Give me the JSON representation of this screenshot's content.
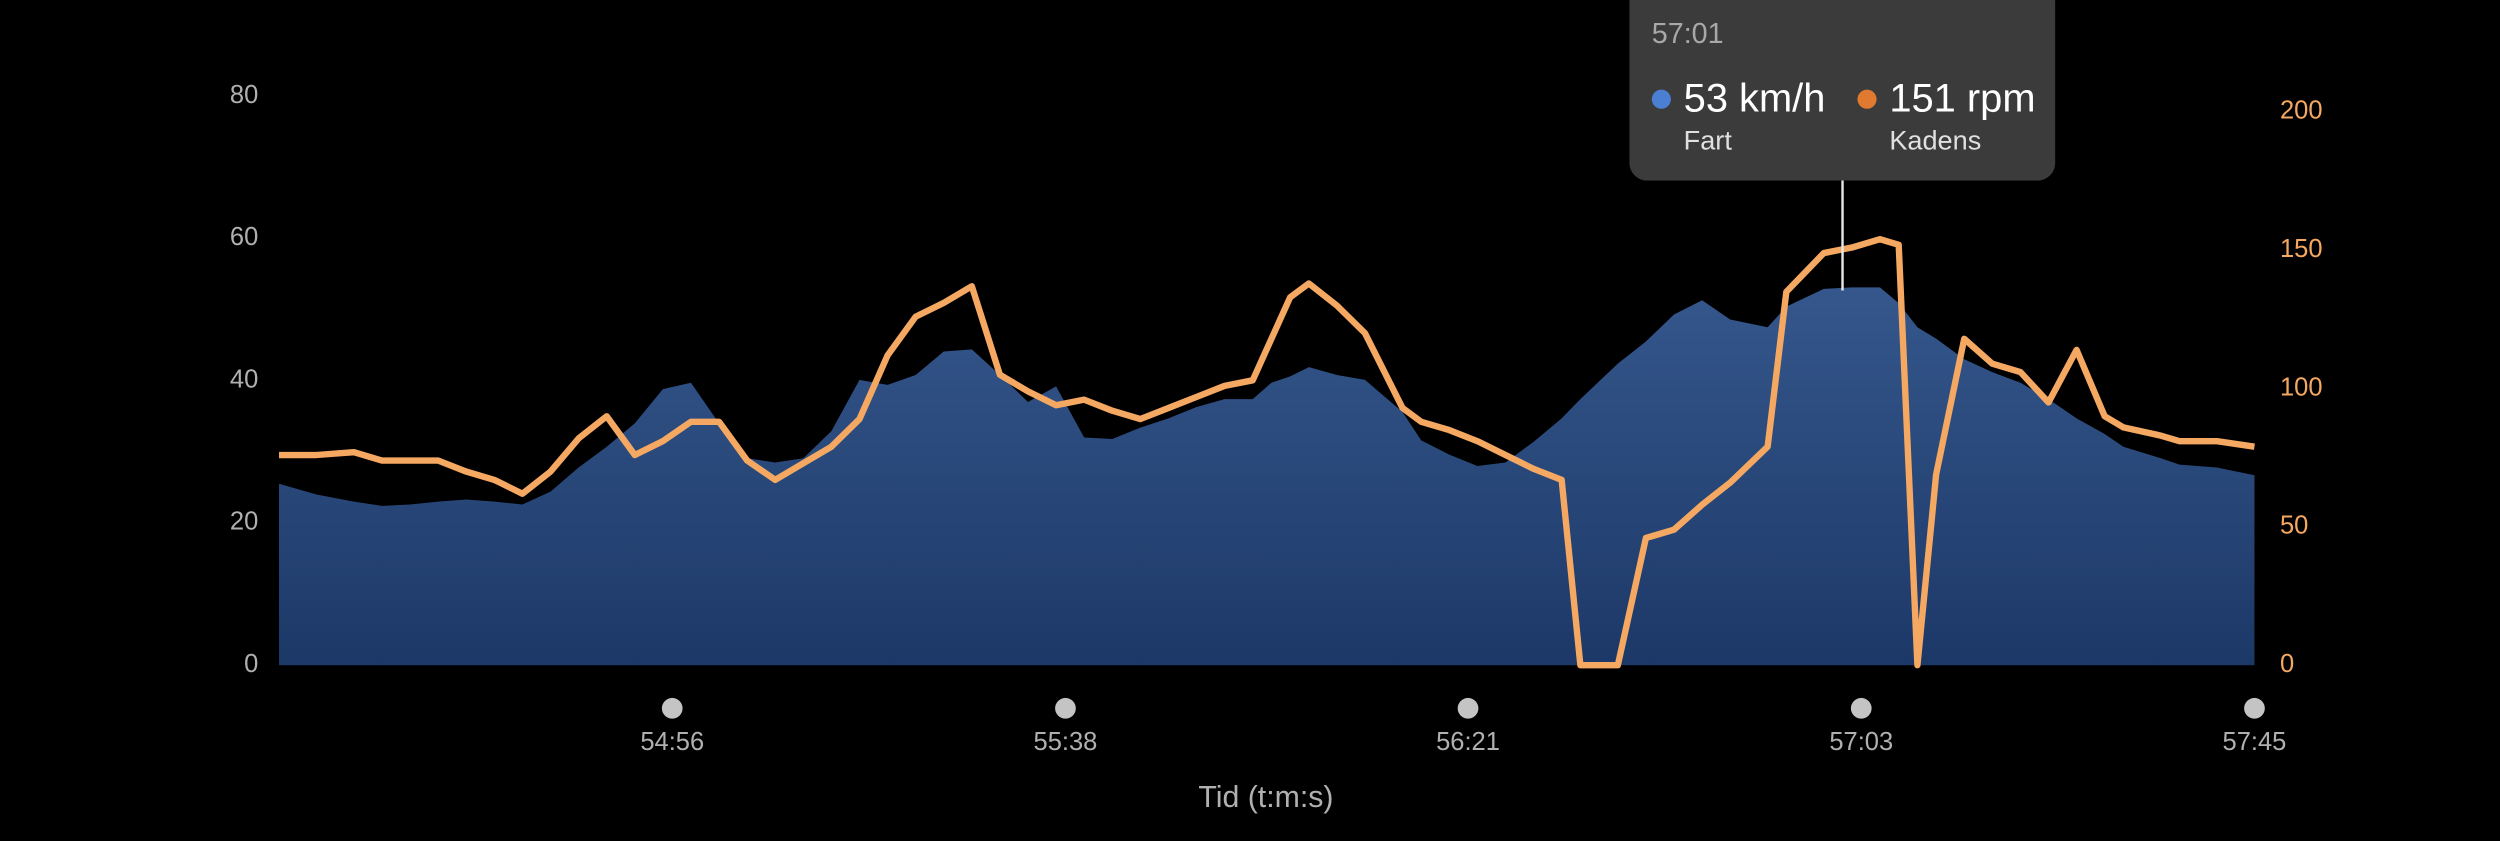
{
  "chart_data": {
    "type": "area-line",
    "xlabel": "Tid (t:m:s)",
    "x": [
      3254,
      3258,
      3262,
      3265,
      3268,
      3271,
      3274,
      3277,
      3280,
      3283,
      3286,
      3289,
      3292,
      3295,
      3298,
      3301,
      3304,
      3307,
      3310,
      3313,
      3316,
      3319,
      3322,
      3325,
      3328,
      3331,
      3334,
      3337,
      3340,
      3343,
      3346,
      3349,
      3352,
      3355,
      3358,
      3360,
      3362,
      3364,
      3367,
      3370,
      3374,
      3376,
      3379,
      3382,
      3385,
      3388,
      3391,
      3393,
      3397,
      3400,
      3403,
      3406,
      3409,
      3413,
      3415,
      3419,
      3422,
      3425,
      3427,
      3429,
      3431,
      3434,
      3437,
      3440,
      3443,
      3446,
      3449,
      3451,
      3455,
      3457,
      3461,
      3465
    ],
    "xlim": [
      3254,
      3465
    ],
    "xticks": [
      {
        "value": 3296,
        "label": "54:56"
      },
      {
        "value": 3338,
        "label": "55:38"
      },
      {
        "value": 3381,
        "label": "56:21"
      },
      {
        "value": 3423,
        "label": "57:03"
      },
      {
        "value": 3465,
        "label": "57:45"
      }
    ],
    "ylim": [
      0,
      80
    ],
    "yticks": [
      0,
      20,
      40,
      60,
      80
    ],
    "y2lim": [
      0,
      200
    ],
    "y2ticks": [
      0,
      50,
      100,
      150,
      200
    ],
    "series": [
      {
        "name": "Fart",
        "kind": "area",
        "color": "#2c4c80",
        "values": [
          25.5,
          24,
          23,
          22.4,
          22.6,
          23,
          23.3,
          23,
          22.6,
          24.4,
          27.8,
          30.7,
          34,
          38.8,
          39.7,
          34,
          29.1,
          28.5,
          29.1,
          32.9,
          40.1,
          39.4,
          40.8,
          44.1,
          44.4,
          40.8,
          37,
          39.2,
          32,
          31.8,
          33.4,
          34.7,
          36.3,
          37.4,
          37.4,
          39.7,
          40.6,
          41.9,
          40.8,
          40.1,
          35.6,
          31.6,
          29.6,
          28,
          28.5,
          31.4,
          34.7,
          37.4,
          42.4,
          45.5,
          49.3,
          51.3,
          48.6,
          47.5,
          50.4,
          52.9,
          53.1,
          53.1,
          50.9,
          47.5,
          45.9,
          43,
          41.2,
          39.7,
          37.4,
          34.7,
          32.5,
          30.7,
          29.1,
          28.2,
          27.8,
          26.7
        ]
      },
      {
        "name": "Kadens",
        "kind": "line",
        "axis": "y2",
        "color": "#f5a862",
        "values": [
          76,
          76,
          77,
          74,
          74,
          74,
          70,
          67,
          62,
          70,
          82,
          90,
          76,
          81,
          88,
          88,
          74,
          67,
          73,
          79,
          89,
          112,
          126,
          131,
          137,
          105,
          99,
          94,
          96,
          92,
          89,
          93,
          97,
          101,
          103,
          118,
          133,
          138,
          130,
          120,
          93,
          88,
          85,
          81,
          76,
          71,
          67,
          0,
          0,
          46,
          49,
          58,
          66,
          79,
          135,
          149,
          151,
          154,
          152,
          0,
          69,
          118,
          109,
          106,
          95,
          114,
          90,
          86,
          83,
          81,
          81,
          79
        ]
      }
    ],
    "tooltip": {
      "title": "57:01",
      "items": [
        {
          "value": "53 km/h",
          "color": "#4a7fd4"
        },
        {
          "value": "151 rpm",
          "color": "#e07a30"
        }
      ]
    }
  }
}
